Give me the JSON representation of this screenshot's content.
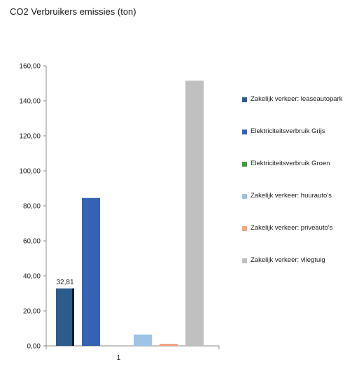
{
  "chart_data": {
    "type": "bar",
    "title": "CO2 Verbruikers emissies (ton)",
    "xlabel": "",
    "ylabel": "",
    "categories": [
      "1"
    ],
    "ylim": [
      0,
      160
    ],
    "yticks": [
      "0,00",
      "20,00",
      "40,00",
      "60,00",
      "80,00",
      "100,00",
      "120,00",
      "140,00",
      "160,00"
    ],
    "grid": false,
    "legend_position": "right",
    "series": [
      {
        "name": "Zakelijk verkeer: leaseautopark",
        "values": [
          32.81
        ],
        "color": "#2E5C8A",
        "data_label": "32,81"
      },
      {
        "name": "Elektriciteitsverbruik Grijs",
        "values": [
          84.5
        ],
        "color": "#3563B3",
        "data_label": ""
      },
      {
        "name": "Elektriciteitsverbruik Groen",
        "values": [
          0.0
        ],
        "color": "#3E9A3E",
        "data_label": ""
      },
      {
        "name": "Zakelijk verkeer: huurauto's",
        "values": [
          6.5
        ],
        "color": "#9DC3E6",
        "data_label": ""
      },
      {
        "name": "Zakelijk verkeer: priveauto's",
        "values": [
          1.2
        ],
        "color": "#F4A582",
        "data_label": ""
      },
      {
        "name": "Zakelijk verkeer: vliegtuig",
        "values": [
          151.5
        ],
        "color": "#C0C0C0",
        "data_label": ""
      }
    ]
  }
}
